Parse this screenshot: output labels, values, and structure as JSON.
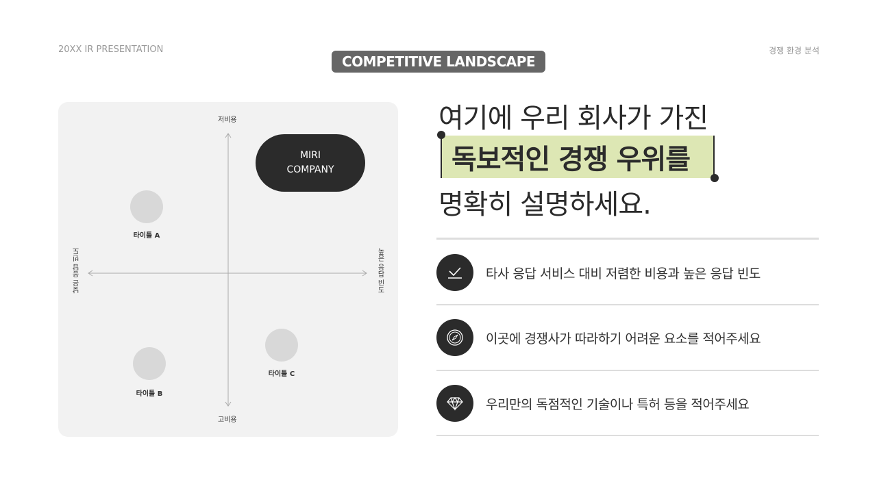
{
  "header": {
    "left": "20XX IR PRESENTATION",
    "right": "경쟁 환경 분석",
    "badge": "COMPETITIVE LANDSCAPE"
  },
  "matrix": {
    "top": "저비용",
    "bottom": "고비용",
    "left": "낮은 응답 빈도",
    "right": "높은 응답 빈도",
    "items": [
      {
        "label": "타이틀 A"
      },
      {
        "label": "타이틀 B"
      },
      {
        "label": "타이틀 C"
      }
    ],
    "company": [
      "MIRI",
      "COMPANY"
    ]
  },
  "headline": {
    "line1": "여기에 우리 회사가 가진",
    "line2": "독보적인 경쟁 우위를",
    "line3": "명확히 설명하세요.",
    "highlight_color": "#dde7b4"
  },
  "points": [
    {
      "icon": "check-icon",
      "text": "타사 응답 서비스 대비 저렴한 비용과 높은 응답 빈도"
    },
    {
      "icon": "compass-icon",
      "text": "이곳에 경쟁사가 따라하기 어려운 요소를 적어주세요"
    },
    {
      "icon": "diamond-icon",
      "text": "우리만의 독점적인 기술이나 특허 등을 적어주세요"
    }
  ]
}
